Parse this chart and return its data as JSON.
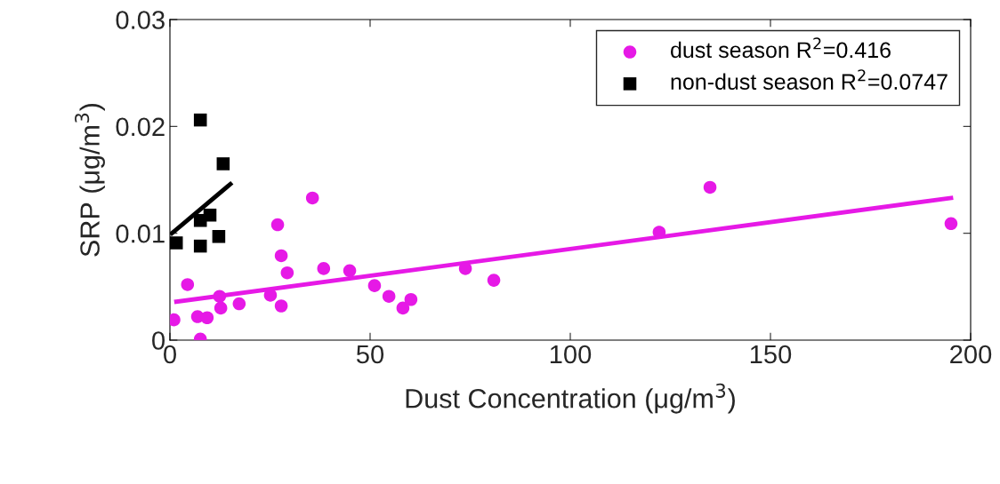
{
  "chart_data": {
    "type": "scatter",
    "xlabel": "Dust Concentration (μg/m$^{3}$)",
    "ylabel": "SRP (μg/m$^{3}$)",
    "xlim": [
      0,
      200
    ],
    "xticks": [
      0,
      50,
      100,
      150,
      200
    ],
    "ylim": [
      0,
      0.03
    ],
    "yticks": [
      0,
      0.01,
      0.02,
      0.03
    ],
    "grid": false,
    "legend": "top right",
    "series": [
      {
        "name": "dust season R$^{2}$=0.416",
        "color": "#e619e6",
        "marker": "circle",
        "x": [
          1.0,
          4.4,
          6.9,
          7.6,
          9.3,
          12.4,
          12.7,
          17.3,
          25.1,
          27.8,
          26.9,
          27.8,
          29.3,
          35.6,
          38.4,
          44.9,
          51.1,
          54.7,
          58.2,
          60.2,
          73.8,
          80.9,
          122.2,
          134.9,
          195.1
        ],
        "values": [
          0.0019,
          0.0052,
          0.0022,
          0.0001,
          0.0021,
          0.0041,
          0.003,
          0.0034,
          0.0042,
          0.0032,
          0.0108,
          0.0079,
          0.0063,
          0.0133,
          0.0067,
          0.0065,
          0.0051,
          0.0041,
          0.003,
          0.0038,
          0.0067,
          0.0056,
          0.0101,
          0.0143,
          0.0109
        ]
      },
      {
        "name": "non-dust season R$^{2}$=0.0747",
        "color": "#000000",
        "marker": "square",
        "x": [
          7.6,
          13.3,
          1.6,
          7.6,
          12.2,
          7.6,
          10.0
        ],
        "values": [
          0.0206,
          0.0165,
          0.0091,
          0.0088,
          0.0097,
          0.0112,
          0.0117
        ]
      },
      {
        "type": "line",
        "color": "#e619e6",
        "x": [
          1.6,
          195.1
        ],
        "values": [
          0.0036,
          0.0133
        ]
      },
      {
        "type": "line",
        "color": "#000000",
        "x": [
          0.5,
          15.1
        ],
        "values": [
          0.01,
          0.0146
        ]
      }
    ]
  }
}
